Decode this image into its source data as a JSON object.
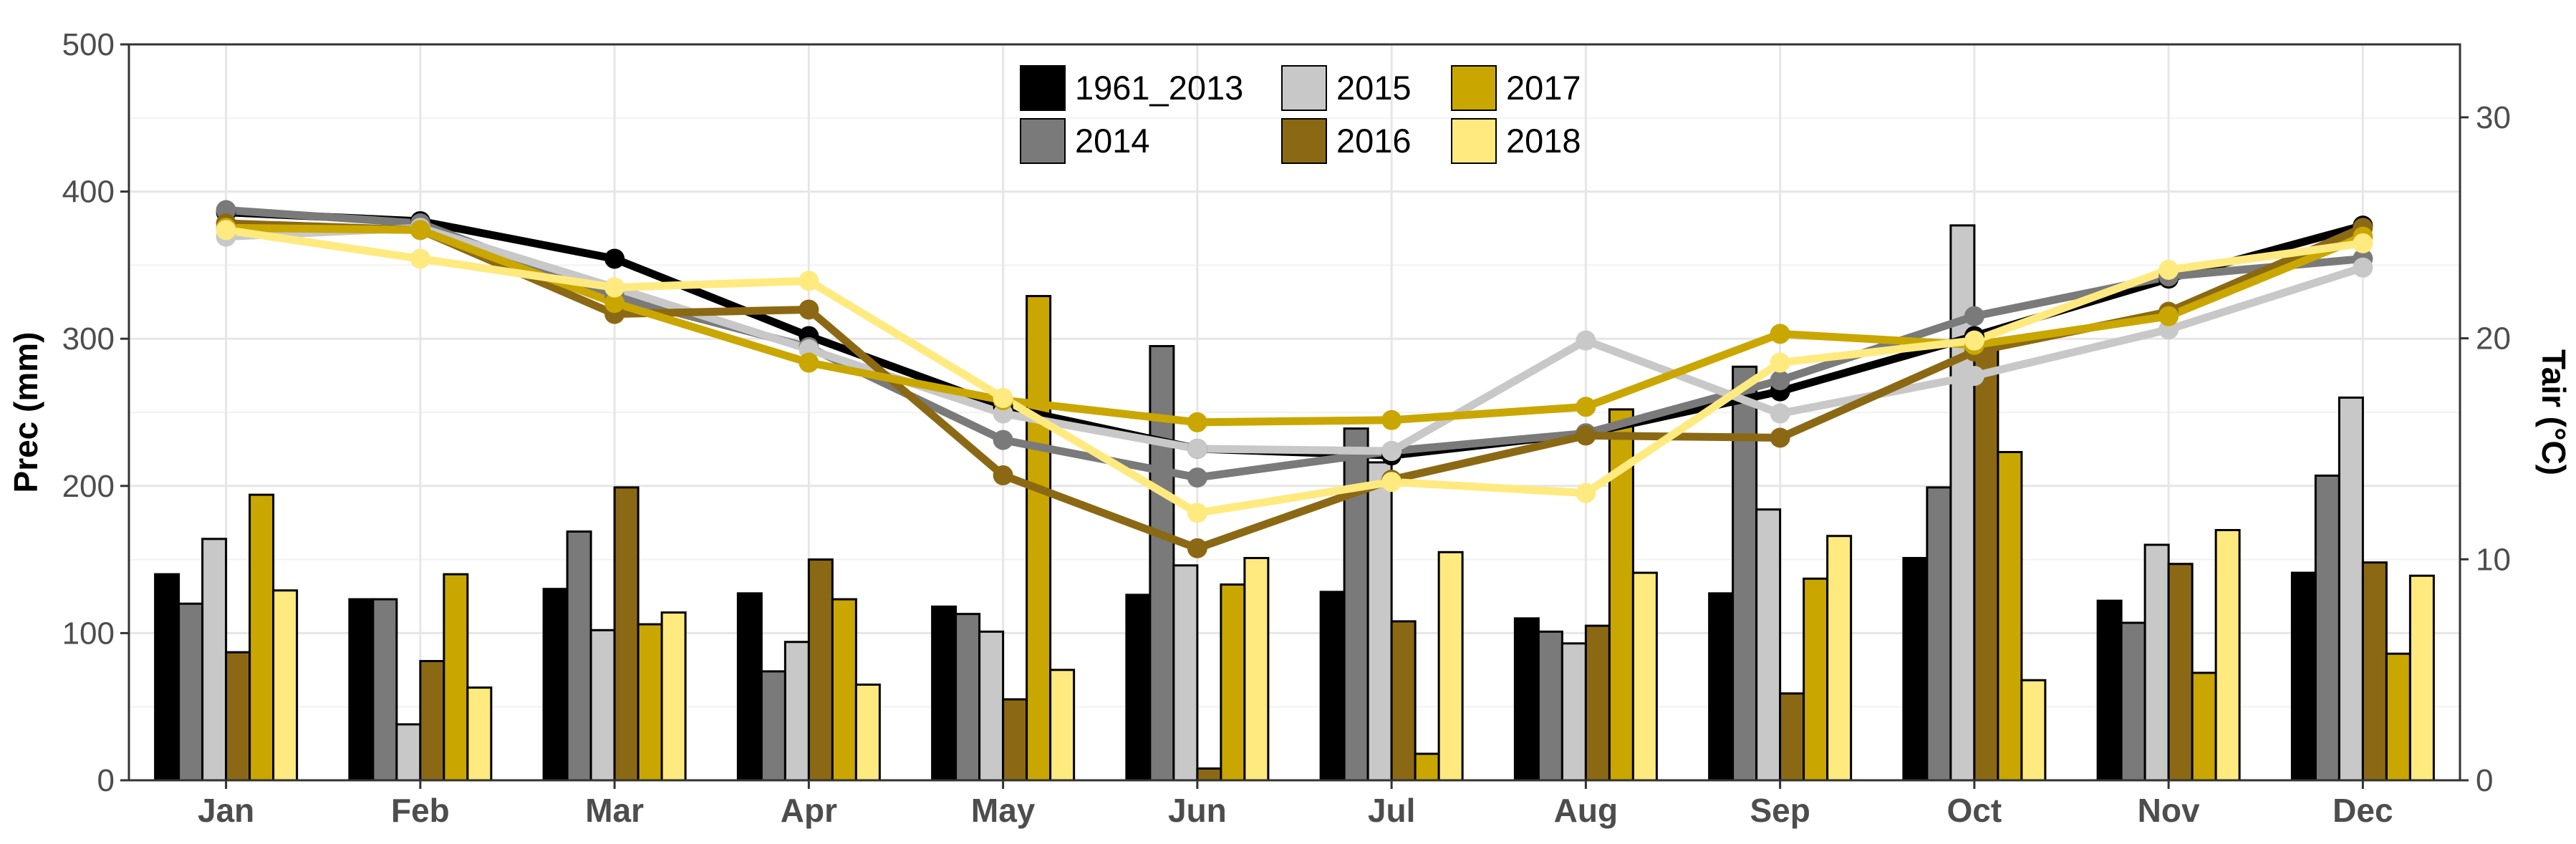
{
  "chart_data": {
    "type": "bar+line",
    "categories": [
      "Jan",
      "Feb",
      "Mar",
      "Apr",
      "May",
      "Jun",
      "Jul",
      "Aug",
      "Sep",
      "Oct",
      "Nov",
      "Dec"
    ],
    "ylabel_left": "Prec (mm)",
    "ylabel_right": "Tair (°C)",
    "ylim_left": [
      0,
      500
    ],
    "ylim_right": [
      0,
      33.3
    ],
    "yticks_left": [
      "0",
      "100",
      "200",
      "300",
      "400",
      "500"
    ],
    "yticks_right": [
      "0",
      "10",
      "20",
      "30"
    ],
    "grid": true,
    "legend_position": "top-center",
    "series": [
      {
        "name": "1961_2013",
        "color": "#000000",
        "precip": [
          140,
          123,
          130,
          127,
          118,
          126,
          128,
          110,
          127,
          151,
          122,
          141
        ],
        "temp": [
          25.7,
          25.3,
          23.6,
          20.1,
          16.9,
          15.0,
          14.7,
          15.7,
          17.6,
          20.1,
          22.7,
          25.1
        ]
      },
      {
        "name": "2014",
        "color": "#7a7a7a",
        "precip": [
          120,
          123,
          169,
          74,
          113,
          295,
          239,
          101,
          281,
          199,
          107,
          207
        ],
        "temp": [
          25.8,
          25.2,
          21.9,
          19.6,
          15.4,
          13.7,
          14.9,
          15.7,
          18.1,
          21.0,
          22.8,
          23.6
        ]
      },
      {
        "name": "2015",
        "color": "#c8c8c8",
        "precip": [
          164,
          38,
          102,
          94,
          101,
          146,
          216,
          93,
          184,
          377,
          160,
          260
        ],
        "temp": [
          24.6,
          25.0,
          22.3,
          19.5,
          16.6,
          15.0,
          14.9,
          19.9,
          16.6,
          18.3,
          20.4,
          23.2
        ]
      },
      {
        "name": "2016",
        "color": "#8b6914",
        "precip": [
          87,
          81,
          199,
          150,
          55,
          8,
          108,
          105,
          59,
          297,
          147,
          148
        ],
        "temp": [
          25.2,
          24.9,
          21.1,
          21.3,
          13.8,
          10.5,
          13.6,
          15.6,
          15.5,
          19.4,
          21.2,
          25.0
        ]
      },
      {
        "name": "2017",
        "color": "#c9a700",
        "precip": [
          194,
          140,
          106,
          123,
          329,
          133,
          18,
          252,
          137,
          223,
          73,
          86
        ],
        "temp": [
          25.0,
          24.9,
          21.6,
          18.9,
          17.2,
          16.2,
          16.3,
          16.9,
          20.2,
          19.7,
          21.0,
          24.6
        ]
      },
      {
        "name": "2018",
        "color": "#ffea80",
        "precip": [
          129,
          63,
          114,
          65,
          75,
          151,
          155,
          141,
          166,
          68,
          170,
          139
        ],
        "temp": [
          24.9,
          23.6,
          22.3,
          22.6,
          17.3,
          12.1,
          13.5,
          13.0,
          18.9,
          19.9,
          23.1,
          24.3
        ]
      }
    ]
  }
}
